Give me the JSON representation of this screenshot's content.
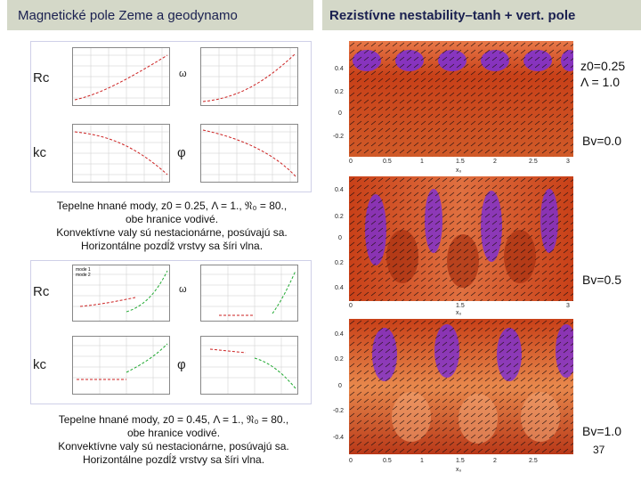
{
  "header": {
    "left_title": "Magnetické pole Zeme a geodynamo",
    "right_title": "Rezistívne nestability–tanh + vert. pole"
  },
  "left": {
    "panel_top": {
      "label_rc": "Rc",
      "label_kc": "kc",
      "symbol_omega": "ω",
      "symbol_phi": "φ"
    },
    "caption_top": {
      "line1": "Tepelne hnané mody, z0 = 0.25, Λ = 1., 𝔑₀ = 80.,",
      "line2": "obe hranice vodivé.",
      "line3": "Konvektívne valy sú nestacionárne, posúvajú sa.",
      "line4": "Horizontálne pozdĺž vrstvy sa šíri vlna."
    },
    "panel_bottom": {
      "label_rc": "Rc",
      "label_kc": "kc",
      "symbol_omega": "ω",
      "symbol_phi": "φ",
      "legend_mode1": "mode 1",
      "legend_mode2": "mode 2"
    },
    "caption_bottom": {
      "line1": "Tepelne hnané mody, z0 = 0.45, Λ = 1., 𝔑₀ = 80.,",
      "line2": "obe hranice vodivé.",
      "line3": "Konvektívne valy sú nestacionárne, posúvajú sa.",
      "line4": "Horizontálne pozdĺž vrstvy sa šíri vlna."
    }
  },
  "right": {
    "params_z0": "z0=0.25",
    "params_lambda": "Λ = 1.0",
    "bv_0": "Bv=0.0",
    "bv_05": "Bv=0.5",
    "bv_1": "Bv=1.0",
    "x_ticks": [
      "0",
      "0.5",
      "1",
      "1.5",
      "2",
      "2.5",
      "3"
    ],
    "y_ticks_1": [
      "0.4",
      "0.2",
      "0",
      "-0.2",
      "-0.4"
    ],
    "y_ticks_2": [
      "0.4",
      "0.2",
      "0",
      "0.2",
      "0.4"
    ],
    "x_label": "x₀"
  },
  "page_number": "37",
  "colors": {
    "title_bg": "#d4d8c8",
    "title_text": "#1a2050",
    "field_red": "#c84018",
    "field_purple": "#7a2ed8"
  }
}
